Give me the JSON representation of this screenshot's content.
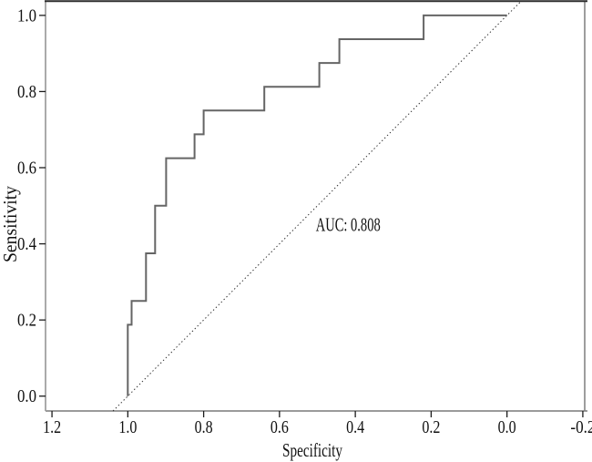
{
  "figure": {
    "kind": "ROC curve plot",
    "background": "#ffffff"
  },
  "colors": {
    "curve": "#656565",
    "axis_frame": "#9b9b9b",
    "right_frame": "#7d7d7d",
    "top_border": "#2c2c2c",
    "ticks": "#1c1c1c",
    "text": "#111111",
    "diagonal": "#2e2e2e",
    "background": "#ffffff"
  },
  "chart_data": {
    "type": "line",
    "subtype": "roc-step-curve",
    "title": "",
    "xlabel": "Specificity",
    "ylabel": "Sensitivity",
    "x_axis_reversed": true,
    "xlim": [
      1.217,
      -0.205
    ],
    "ylim": [
      -0.039,
      1.038
    ],
    "x_ticks": {
      "values": [
        1.2,
        1.0,
        0.8,
        0.6,
        0.4,
        0.2,
        0.0,
        -0.2
      ],
      "labels": [
        "1.2",
        "1.0",
        "0.8",
        "0.6",
        "0.4",
        "0.2",
        "0.0",
        "-0.2"
      ]
    },
    "y_ticks": {
      "values": [
        0.0,
        0.2,
        0.4,
        0.6,
        0.8,
        1.0
      ],
      "labels": [
        "0.0",
        "0.2",
        "0.4",
        "0.6",
        "0.8",
        "1.0"
      ]
    },
    "grid": false,
    "legend": false,
    "auc": 0.808,
    "annotation": {
      "text": "AUC: 0.808",
      "x": 0.419,
      "y": 0.449
    },
    "series": [
      {
        "name": "ROC curve",
        "type": "step",
        "points": [
          [
            1.0,
            0.0
          ],
          [
            1.0,
            0.1875
          ],
          [
            0.99,
            0.1875
          ],
          [
            0.99,
            0.25
          ],
          [
            0.952,
            0.25
          ],
          [
            0.952,
            0.375
          ],
          [
            0.928,
            0.375
          ],
          [
            0.928,
            0.5
          ],
          [
            0.899,
            0.5
          ],
          [
            0.899,
            0.625
          ],
          [
            0.824,
            0.625
          ],
          [
            0.824,
            0.6875
          ],
          [
            0.8,
            0.6875
          ],
          [
            0.8,
            0.75
          ],
          [
            0.64,
            0.75
          ],
          [
            0.64,
            0.8125
          ],
          [
            0.495,
            0.8125
          ],
          [
            0.495,
            0.875
          ],
          [
            0.442,
            0.875
          ],
          [
            0.442,
            0.9375
          ],
          [
            0.22,
            0.9375
          ],
          [
            0.22,
            1.0
          ],
          [
            0.0,
            1.0
          ]
        ]
      },
      {
        "name": "reference diagonal",
        "type": "dotted-line",
        "from": [
          1.0,
          0.0
        ],
        "to": [
          0.0,
          1.0
        ],
        "extends_to_plot_edges": true
      }
    ]
  }
}
